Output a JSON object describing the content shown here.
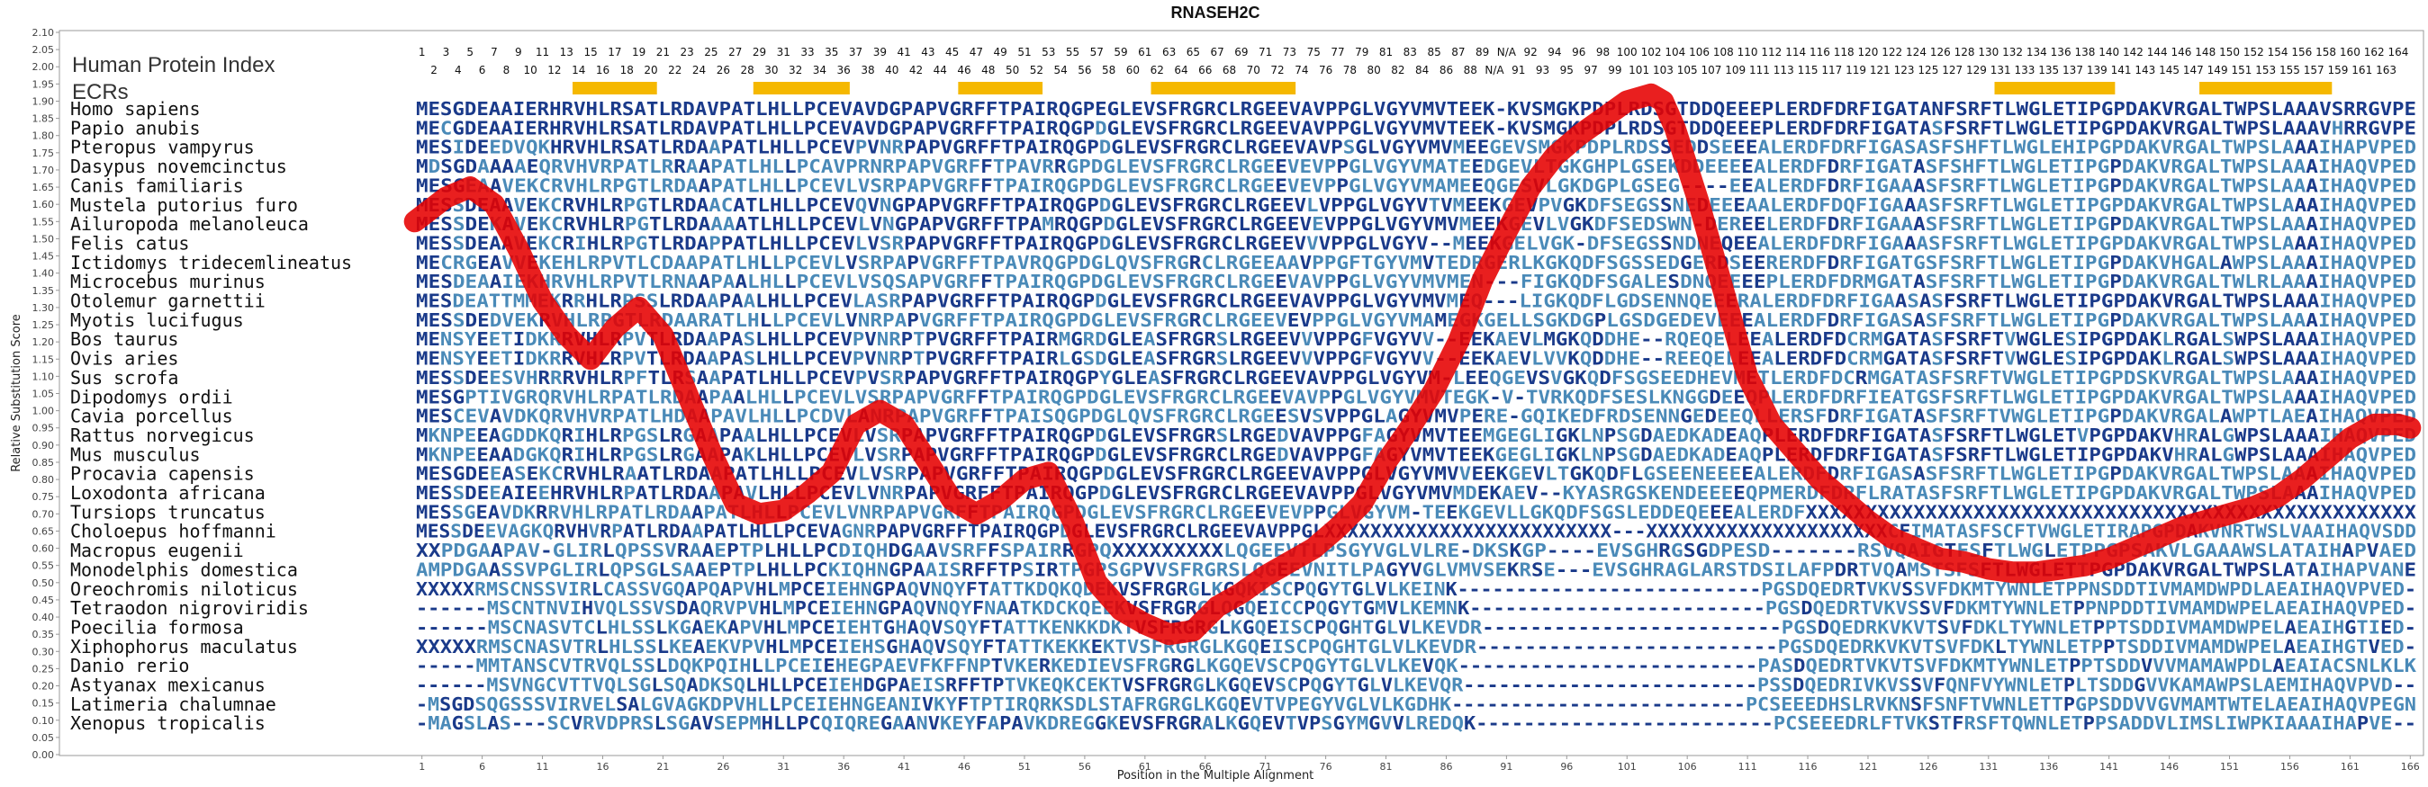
{
  "chart_data": {
    "type": "line",
    "title": "RNASEH2C",
    "xlabel": "Position in the Multiple Alignment",
    "ylabel": "Relative Substitution Score",
    "ylim": [
      0,
      2.1
    ],
    "xlim": [
      1,
      166
    ],
    "yticks": [
      "0.00",
      "0.05",
      "0.10",
      "0.15",
      "0.20",
      "0.25",
      "0.30",
      "0.35",
      "0.40",
      "0.45",
      "0.50",
      "0.55",
      "0.60",
      "0.65",
      "0.70",
      "0.75",
      "0.80",
      "0.85",
      "0.90",
      "0.95",
      "1.00",
      "1.05",
      "1.10",
      "1.15",
      "1.20",
      "1.25",
      "1.30",
      "1.35",
      "1.40",
      "1.45",
      "1.50",
      "1.55",
      "1.60",
      "1.65",
      "1.70",
      "1.75",
      "1.80",
      "1.85",
      "1.90",
      "1.95",
      "2.00",
      "2.05",
      "2.10"
    ],
    "xticks": [
      "1",
      "6",
      "11",
      "16",
      "21",
      "26",
      "31",
      "36",
      "41",
      "46",
      "51",
      "56",
      "61",
      "66",
      "71",
      "76",
      "81",
      "86",
      "91",
      "96",
      "101",
      "106",
      "111",
      "116",
      "121",
      "126",
      "131",
      "136",
      "141",
      "146",
      "151",
      "156",
      "161",
      "166"
    ],
    "top_index_odd": [
      "1",
      "3",
      "5",
      "7",
      "9",
      "11",
      "13",
      "15",
      "17",
      "19",
      "21",
      "23",
      "25",
      "27",
      "29",
      "31",
      "33",
      "35",
      "37",
      "39",
      "41",
      "43",
      "45",
      "47",
      "49",
      "51",
      "53",
      "55",
      "57",
      "59",
      "61",
      "63",
      "65",
      "67",
      "69",
      "71",
      "73",
      "75",
      "77",
      "79",
      "81",
      "83",
      "85",
      "87",
      "89",
      "N/A",
      "92",
      "94",
      "96",
      "98",
      "100",
      "102",
      "104",
      "106",
      "108",
      "110",
      "112",
      "114",
      "116",
      "118",
      "120",
      "122",
      "124",
      "126",
      "128",
      "130",
      "132",
      "134",
      "136",
      "138",
      "140",
      "142",
      "144",
      "146",
      "148",
      "150",
      "152",
      "154",
      "156",
      "158",
      "160",
      "162",
      "164"
    ],
    "top_index_even": [
      "2",
      "4",
      "6",
      "8",
      "10",
      "12",
      "14",
      "16",
      "18",
      "20",
      "22",
      "24",
      "26",
      "28",
      "30",
      "32",
      "34",
      "36",
      "38",
      "40",
      "42",
      "44",
      "46",
      "48",
      "50",
      "52",
      "54",
      "56",
      "58",
      "60",
      "62",
      "64",
      "66",
      "68",
      "70",
      "72",
      "74",
      "76",
      "78",
      "80",
      "82",
      "84",
      "86",
      "88",
      "N/A",
      "91",
      "93",
      "95",
      "97",
      "99",
      "101",
      "103",
      "105",
      "107",
      "109",
      "111",
      "113",
      "115",
      "117",
      "119",
      "121",
      "123",
      "125",
      "127",
      "129",
      "131",
      "133",
      "135",
      "137",
      "139",
      "141",
      "143",
      "145",
      "147",
      "149",
      "151",
      "153",
      "155",
      "157",
      "159",
      "161",
      "163"
    ],
    "header_label": "Human Protein Index",
    "ecr_label": "ECRs",
    "ecr_ranges": [
      [
        14,
        20
      ],
      [
        29,
        36
      ],
      [
        46,
        52
      ],
      [
        62,
        73
      ],
      [
        132,
        141
      ],
      [
        149,
        159
      ]
    ],
    "series": [
      {
        "color": "#e60000",
        "x": [
          1,
          3,
          5,
          7,
          9,
          11,
          13,
          15,
          17,
          19,
          21,
          23,
          25,
          27,
          29,
          31,
          33,
          35,
          37,
          39,
          41,
          43,
          45,
          47,
          49,
          51,
          53,
          55,
          57,
          59,
          61,
          63,
          65,
          67,
          69,
          71,
          73,
          75,
          77,
          79,
          81,
          83,
          85,
          87,
          89,
          91,
          93,
          95,
          97,
          99,
          101,
          103,
          104,
          105,
          107,
          109,
          111,
          113,
          115,
          117,
          119,
          121,
          123,
          125,
          127,
          129,
          131,
          133,
          135,
          137,
          139,
          141,
          143,
          145,
          147,
          149,
          151,
          153,
          155,
          157,
          159,
          161,
          163,
          165,
          166
        ],
        "y": [
          1.55,
          1.62,
          1.65,
          1.6,
          1.47,
          1.32,
          1.22,
          1.15,
          1.24,
          1.3,
          1.22,
          1.05,
          0.88,
          0.73,
          0.7,
          0.71,
          0.76,
          0.82,
          0.96,
          1.0,
          0.96,
          0.85,
          0.74,
          0.7,
          0.74,
          0.8,
          0.82,
          0.68,
          0.5,
          0.42,
          0.38,
          0.35,
          0.36,
          0.43,
          0.47,
          0.52,
          0.56,
          0.6,
          0.66,
          0.73,
          0.85,
          0.95,
          1.06,
          1.2,
          1.38,
          1.52,
          1.65,
          1.74,
          1.8,
          1.85,
          1.9,
          1.92,
          1.9,
          1.82,
          1.6,
          1.35,
          1.1,
          0.96,
          0.88,
          0.8,
          0.74,
          0.68,
          0.63,
          0.6,
          0.57,
          0.56,
          0.54,
          0.53,
          0.53,
          0.54,
          0.55,
          0.57,
          0.6,
          0.63,
          0.66,
          0.68,
          0.7,
          0.72,
          0.75,
          0.8,
          0.86,
          0.92,
          0.96,
          0.96,
          0.95
        ]
      }
    ]
  },
  "species": [
    "Homo sapiens",
    "Papio anubis",
    "Pteropus vampyrus",
    "Dasypus novemcinctus",
    "Canis familiaris",
    "Mustela putorius furo",
    "Ailuropoda melanoleuca",
    "Felis catus",
    "Ictidomys tridecemlineatus",
    "Microcebus murinus",
    "Otolemur garnettii",
    "Myotis lucifugus",
    "Bos taurus",
    "Ovis aries",
    "Sus scrofa",
    "Dipodomys ordii",
    "Cavia porcellus",
    "Rattus norvegicus",
    "Mus musculus",
    "Procavia capensis",
    "Loxodonta africana",
    "Tursiops truncatus",
    "Choloepus hoffmanni",
    "Macropus eugenii",
    "Monodelphis domestica",
    "Oreochromis niloticus",
    "Tetraodon nigroviridis",
    "Poecilia formosa",
    "Xiphophorus maculatus",
    "Danio rerio",
    "Astyanax mexicanus",
    "Latimeria chalumnae",
    "Xenopus tropicalis"
  ],
  "sequences": [
    "MESGDEAAIERHRVHLRSATLRDAVPATLHLLPCEVAVDGPAPVGRFFTPAIRQGPEGLEVSFRGRCLRGEEVAVPPGLVGYVMVTEEK-KVSMGKPDPLRDSGTDDQEEEPLERDFDRFIGATANFSRFTLWGLETIPGPDAKVRGALTWPSLAAAVSRRGVPE",
    "MECGDEAAIERHRVHLRSATLRDAVPATLHLLPCEVAVDGPAPVGRFFTPAIRQGPDGLEVSFRGRCLRGEEVAVPPGLVGYVMVTEEK-KVSMGKPDPLRDSGTDDQEEEPLERDFDRFIGATASFSRFTLWGLETIPGPDAKVRGALTWPSLAAAVHRRGVPE",
    "MESIDEEDVQKHRVHLRSATLRDAAPATLHLLPCEVPVNRPAPVGRFFTPAIRQGPDGLEVSFRGRCLRGEEVAVPSGLVGYVMVMEEGEVSMGKPDPLRDSSEDDSEEEALERDFDRFIGASASFSHFTLWGLEHIPGPDAKVRGALTWPSLAAAIHAPVPED",
    "MDSGDAAAAEQRVHVRPATLRRAAPATLHLLPCAVPRNRPAPVGRFFTPAVRRGPDGLEVSFRGRCLRGEEVEVPPGLVGYVMATEEDGEVLTGKGHPLGSEKDDEEEEALERDFDRFIGATASFSHFTLWGLETIPGPDAKVRGALTWPSLAAAIHAQVPED",
    "MESGEAAVEKCRVHLRPGTLRDAAPATLHLLPCEVLVSRPAPVGRFFTPAIRQGPDGLEVSFRGRCLRGEEVEVPPGLVGYVMAMEEQGESVLGKDGPLGSEG----EEALERDFDRFIGAAASFSRFTLWGLETIPGPDAKVRGALTWPSLAAAIHAQVPED",
    "MESSDEAAVEKCRVHLRPGTLRDAACATLHLLPCEVQVNGPAPVGRFFTPAIRQGPDGLEVSFRGRCLRGEEVLVPPGLVGYVTVMEEKGEVPVGKDFSEGSSNEDEEEAALERDFDQFIGAAASFSRFTLWGLETIPGPDAKVRGALTWPSLAAAIHAQVPED",
    "MESSDEKAVEKCRVHLRPGTLRDAAAATLHLLPCEVLVNGPAPVGRFFTPAMRQGPDGLEVSFRGRCLRGEEVEVPPGLVGYVMVMEEKGEVLVGKDFSEDSWN-DEREELERDFDRFIGAAASFSRFTLWGLETIPGPDAKVRGALTWPSLAAAIHAQVPED",
    "MESSDEAAVEKCRIHLRPGTLRDAPPATLHLLPCEVLVSRPAPVGRFFTPAIRQGPDGLEVSFRGRCLRGEEVVVPPGLVGYV--MEEKGELVGK-DFSEGSSNDNEQEEALERDFDRFIGAAASFSRFTLWGLETIPGPDAKVRGALTWPSLAAAIHAQVPED",
    "MECRGEAVVEKEHLRPVTLCDAAPATLHLLPCEVLVSRPAPVGRFFTPAVRQGPDGLQVSFRGRCLRGEEAAVPPGFTGYVMVTEDRGERLKGKQDFSGSSEDGERDSEERERDFDRFIGATGSFSRFTLWGLETIPGPDAKVHGALAWPSLAAAIHAQVPED",
    "MESDEAAIEKHRVHLRPVTLRNAAPAALHLLPCEVLVSQSAPVGRFFTPAIRQGPDGLEVSFRGRCLRGEEVAVPPGLVGYVMVMEN---FIGKQDFSGALESDNQEEEEPLERDFDRMGATASFSRFTLWGLETIPGPDAKVRGALTWLRLAAAIHAQVPED",
    "MESDEATTMMEKRRHLRPSSLRDAAPAALHLLPCEVLASRPAPVGRFFTPAIRQGPDGLEVSFRGRCLRGEEVAVPPGLVGYVMVMEQ---LIGKQDFLGDSENNQEEERALERDFDRFIGAASASFSRFTLWGLETIPGPDAKVRGALTWPSLAAAIHAQVPED",
    "MESSDEDVEKRVHLRPGTLRDAARATLHLLPCEVLVNRPAPVGRFFTPAIRQGPDGLEVSFRGRCLRGEEVEVPPGLVGYVMAMEGKGELLSGKDGPLGSDGEDEVEEEALERDFDRFIGASASFSRFTLWGLETIPGPDAKVRGALTWPSLAAAIHAQVPED",
    "MENSYEETIDKRRVHLRPVTLRDAAPASLHLLPCEVPVNRPTPVGRFFTPAIRMGRDGLEASFRGRSLRGEEVVVPPGFVGYVV--EEKAEVLMGKQDDHE--RQEQELEEALERDFDCRMGATASFSRFTVWGLESIPGPDAKLRGALSWPSLAAAIHAQVPED",
    "MENSYEETIDKRRVHLRPVTLRDAAPASLHLLPCEVPVNRPTPVGRFFTPAIRLGSDGLEASFRGRSLRGEEVVVPPGFVGYVV--EEKAEVLVVKQDDHE--REEQELEEALERDFDCRMGATASFSRFTVWGLESIPGPDAKLRGALSWPSLAAAIHAQVPED",
    "MESSDEESVHRRRVHLRPFTLRSAAPATLHLLPCEVPVSRPAPVGRFFTPAIRQGPYGLEASFRGRCLRGEEVAVPPGLVGYVM-LEEQGEVSVGKQDFSGSEEDHEVMETLERDFDCRMGATASFSRFTVWGLETIPGPDSKVRGALTWPSLAAAIHAQVPED",
    "MESGPTIVGRQRVHLRPATLRDAAPAALHLLPCEVLVSRPAPVGRFFTPAIRQGPDGLEVSFRGRCLRGEEVAVPPGLVGYVMVTEGK-V-TVRKQDFSESLKNGGDEEQPLERDFDRFIEATGSFSRFTLWGLETIPGPDAKVRGALTWPSLAAAIHAQVPED",
    "MESCEVAVDKQRVHVRPATLHDAAPAVLHLLPCDVLANRPAPVGRFFTPAISQGPDGLQVSFRGRCLRGEESVSVPPGLAGYVMVPERE-GQIKEDFRDSENNGEDEEQLLERSFDRFIGATASFSRFTVWGLETIPGPDAKVRGALAWPTLAEAIHAQVPED",
    "MKNPEEAGDDKQRIHLRPGSLRGAAPAALHLLPCEVLVSRPAPVGRFFTPAIRQGPDGLEVSFRGRSLRGEDVAVPPGFAGYVMVTEEMGEGLIGKLNPSGDAEDKADEAQPLERDFDRFIGATASFSRFTLWGLETVPGPDAKVHRALGWPSLAAAIHAQVPED",
    "MKNPEEAADGKQRIHLRPGSLRGAAPAKLHLLPCEVLVSRPAPVGRFFTPAIRQGPDGLEVSFRGRCLRGEDVAVPPGFAGYVMVTEEKGEGLIGKLNPSGDAEDKADEAQPLERDFDRFIGATASFSRFTLWGLETIPGPDAKVHRALGWPSLAAAIHAQVPED",
    "MESGDEEASEKCRVHLRAATLRDAAPATLHLLPCEVLVSRPAPVGRFFTPAIRQGPDGLEVSFRGRCLRGEEVAVPPGLVGYVMVVEEKGEVLTGKQDFLGSEENEEEEALERDFDRFIGASASFSRFTLWGLETIPGPDAKVRGALTWPSLAAAIHAQVPED",
    "MESSDEEAIEEHRVHLRPATLRDAAPAVLHLLPCEVLVNRPAPVGRFFTPAIRQGPDGLEVSFRGRCLRGEEVAVPPGLVGYVMVMDEKAEV--KYASRGSKENDEEEEQPMERDFDRFLRATASFSRFTLWGLETIPGPDAKVRGALTWPSLAAAIHAQVPED",
    "MESSGEAVDKRRVHLRPATLRDAAPATLHLLPCEVLVNRPAPVGRFFTPAIRQGPDGLEVSFRGRCLRGEEVEVPPGLVGYVM-TEEKGEVLLGKQDFSGSLEDDEQEEEALERDFXXXXXXXXXXXXXXXXXXXXXXXXXXXXXXXXXXXXXXXXXXXXXXXXXXX",
    "MESSDEEVAGKQRVHVRPATLRDAAPATLHLLPCEVAGNRPAPVGRFFTPAIRQGPDGLEVSFRGRCLRGEEVAVPPGLXXXXXXXXXXXXXXXXXXXXXXXXX---XXXXXXXXXXXXXXXXXXXXXCFIMATASFSCFTVWGLETIRAPGPDAKVNRTWSLVAAIHAQVSDD",
    "XXPDGAAPAV-GLIRLQPSSVRAAEPTPLHLLPCDIQHDGAAVSRFFSPAIRRGPQXXXXXXXXXLQGEEVTLPSGYVGLVLRE-DKSKGP----EVSGHRGSGDPESD-------RSVQAIGTFSFTLWGLETPPGPSAKVLGAAAWSLATAIHAPVAED",
    "AMPDGAASSVPGLIRLQPSGLSAAEPTPLHLLPCKIQHNGPAAISRFFTPSIRTPGPSGPVVSFRGRSLQGEEVNITLPAGYVGLVMVSEKRSE---EVSGHRAGLARSTDSILAFPDRTVQAMSTSFSFTLWGLETTPGPDAKVRGALTWPSLATAIHAPVANE",
    "XXXXXRMSCNSSVIRLCASSVGQAPQAPVHLMPCEIEHNGPAQVNQYFTATTKDQKQDEKVSFRGRGLKGQKISCPQGYTGLVLKEINK--------------------------PGSDQEDRTVKVSSVFDKMTYWNLETPPNSDDTIVMAMDWPDLAEAIHAQVPVED-",
    "------MSCNTNVIHVQLSSVSDAQRVPVHLMPCEIEHNGPAQVNQYFNAATKDCKQEEKVSFRGRGLQGQEICCPQGYTGMVLKEMNK-------------------------PGSDQEDRTVKVSSVFDKMTYWNLETPPNPDDTIVMAMDWPELAEAIHAQVPED-",
    "------MSCNASVTCLHLSSLKGAEKAPVHLMPCEIEHTGHAQVSQYFTATTKENKKDKTVSFRGRGLKGQEISCPQGHTGLVLKEVDR-------------------------PGSDQEDRKVKVTSVFDKLTYWNLETPPTSDDIVMAMDWPELAEAIHGTIED-",
    "XXXXXRMSCNASVTRLHLSSLKEAEKVPVHLMPCEIEHSGHAQVSQYFTATTKEKKEKTVSFRGRGLKGQEISCPQGHTGLVLKEVDR-------------------------PGSDQEDRKVKVTSVFDKLTYWNLETPPTSDDIVMAMDWPELAEAIHGTVED-",
    "-----MMTANSCVTRVQLSSLDQKPQIHLLPCEIEHEGPAEVFKFFNPTVKERKEDIEVSFRGRGLKGQEVSCPQGYTGLVLKEVQK-------------------------PASDQEDRTVKVTSVFDKMTYWNLETPPTSDDVVVMAMAWPDLAEAIACSNLKLK",
    "------MSVNGCVTTVQLSGLSQADKSQLHLLPCEIEHDGPAEISRFFTPTVKEQKCEKTVSFRGRGLKGQEVSCPQGYTGLVLKEVQR-------------------------PSSDQEDRIVKVSSVFQNFVYWNLETPLTSDDGVVKAMAWPSLAEMIHAQVPVD--",
    "-MSGDSQGSSSVIRVELSALGVAGKDPVHLLPCEIEHNGEANIVKYFTPTIRQRKSDLSTAFRGRGLKGQEVTVPEGYVGLVLKGDHK-------------------------PCSEEEDHSLRVKNSFSNFTVWNLETTPGPSDDVVGVMAMTWTELAEAIHAQVPEGN",
    "-MAGSLAS---SCVRVDPRSLSGAVSEPMHLLPCQIQREGAANVKEYFAPAVKDREGGKEVSFRGRALKGQEVTVPSGYMGVVLREDQK-------------------------PCSEEEDRLFTVKSTFRSFTQWNLETPPSADDVLIMSLIWPKIAAAIHAPVE--"
  ],
  "color_rules": {
    "conserved_color": "#1a3a8a",
    "variable_color": "#4a8ab8",
    "gap_color": "#1a3a8a",
    "ecr_bar_color": "#f5b800"
  }
}
